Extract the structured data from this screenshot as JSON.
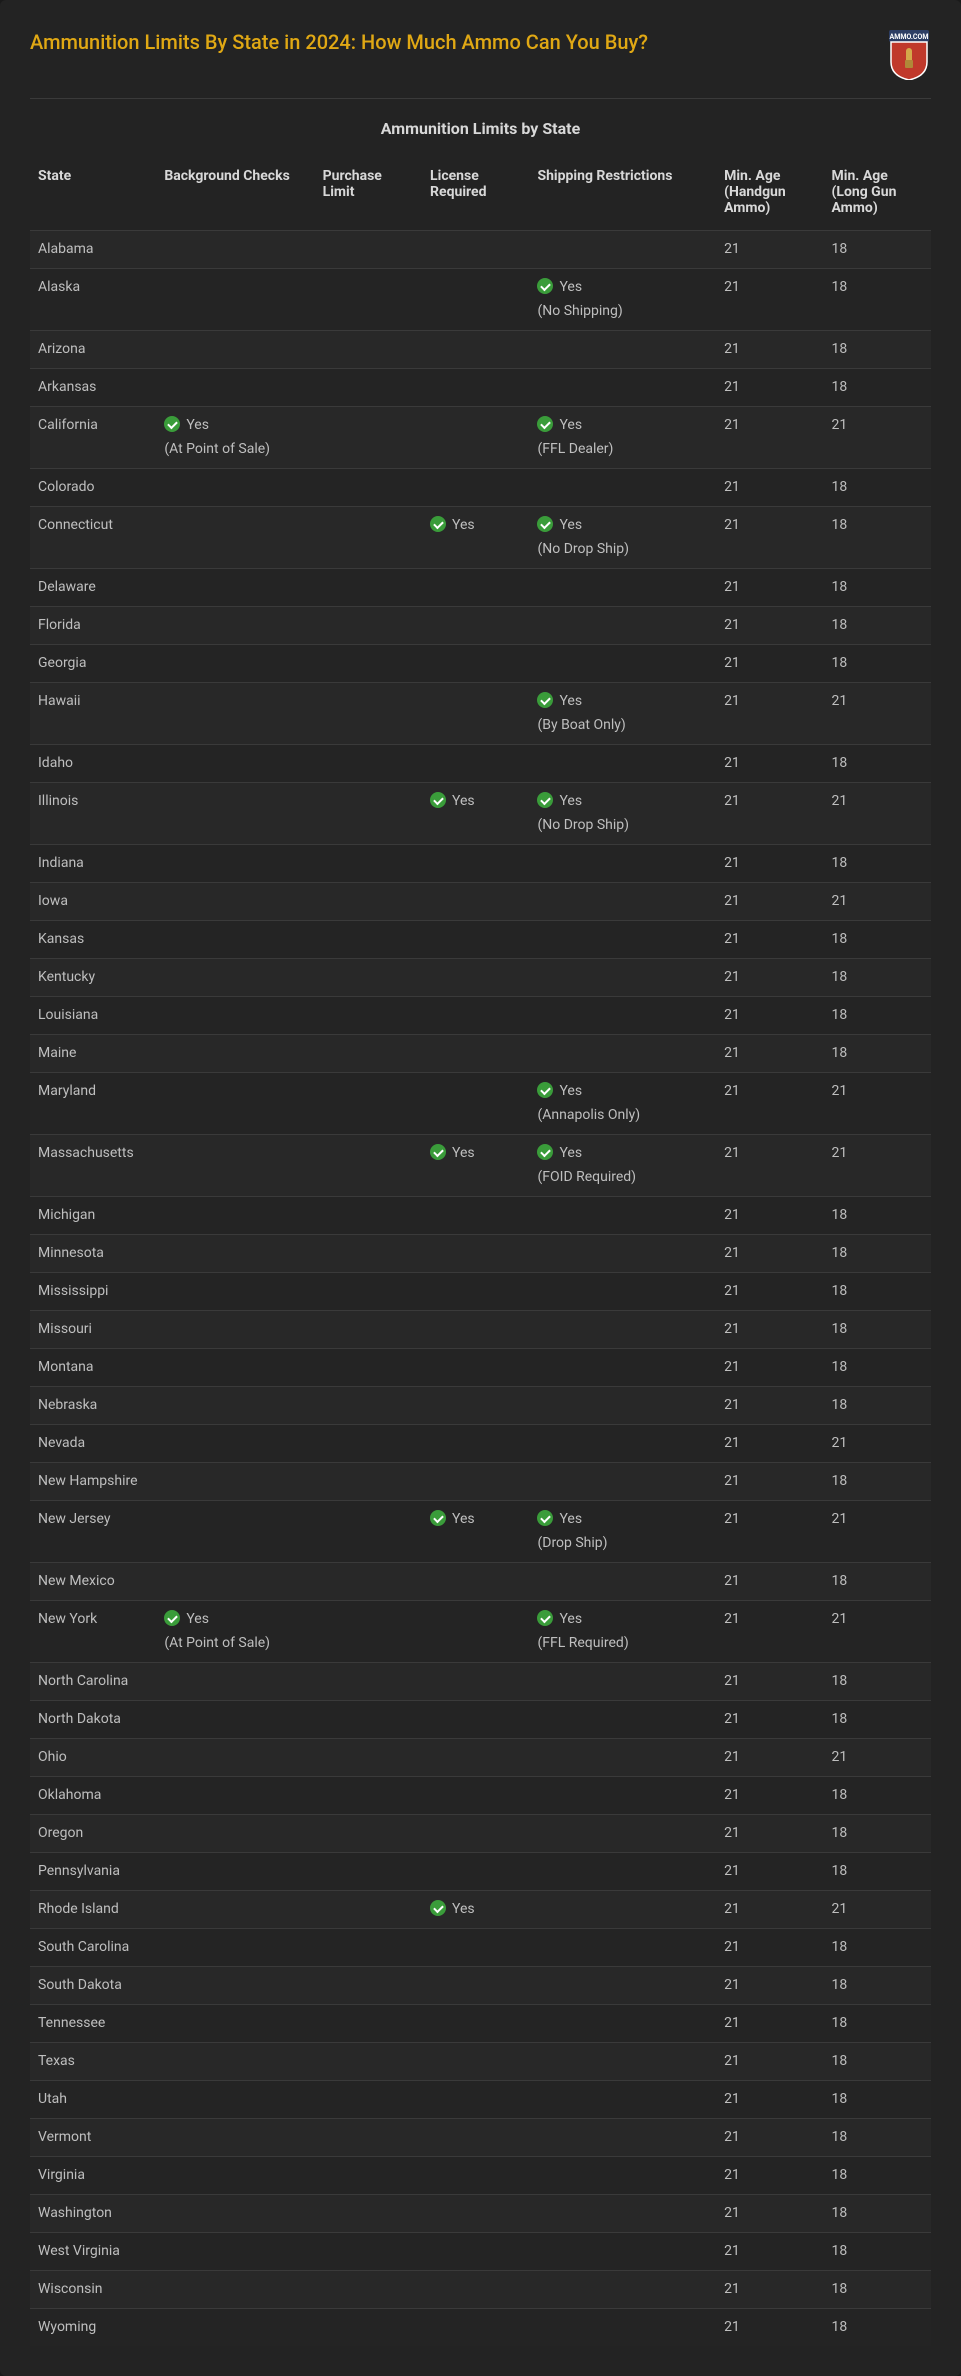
{
  "page": {
    "title": "Ammunition Limits By State in 2024: How Much Ammo Can You Buy?",
    "table_title": "Ammunition Limits by State",
    "logo_text": "AMMO.COM"
  },
  "yes_label": "Yes",
  "columns": [
    "State",
    "Background Checks",
    "Purchase Limit",
    "License Required",
    "Shipping Restrictions",
    "Min. Age (Handgun Ammo)",
    "Min. Age (Long Gun Ammo)"
  ],
  "rows": [
    {
      "state": "Alabama",
      "bg": null,
      "bg_note": null,
      "plimit": null,
      "license": false,
      "ship": false,
      "ship_note": null,
      "age_h": "21",
      "age_l": "18"
    },
    {
      "state": "Alaska",
      "bg": null,
      "bg_note": null,
      "plimit": null,
      "license": false,
      "ship": true,
      "ship_note": "(No Shipping)",
      "age_h": "21",
      "age_l": "18"
    },
    {
      "state": "Arizona",
      "bg": null,
      "bg_note": null,
      "plimit": null,
      "license": false,
      "ship": false,
      "ship_note": null,
      "age_h": "21",
      "age_l": "18"
    },
    {
      "state": "Arkansas",
      "bg": null,
      "bg_note": null,
      "plimit": null,
      "license": false,
      "ship": false,
      "ship_note": null,
      "age_h": "21",
      "age_l": "18"
    },
    {
      "state": "California",
      "bg": true,
      "bg_note": "(At Point of Sale)",
      "plimit": null,
      "license": false,
      "ship": true,
      "ship_note": "(FFL Dealer)",
      "age_h": "21",
      "age_l": "21"
    },
    {
      "state": "Colorado",
      "bg": null,
      "bg_note": null,
      "plimit": null,
      "license": false,
      "ship": false,
      "ship_note": null,
      "age_h": "21",
      "age_l": "18"
    },
    {
      "state": "Connecticut",
      "bg": null,
      "bg_note": null,
      "plimit": null,
      "license": true,
      "ship": true,
      "ship_note": "(No Drop Ship)",
      "age_h": "21",
      "age_l": "18"
    },
    {
      "state": "Delaware",
      "bg": null,
      "bg_note": null,
      "plimit": null,
      "license": false,
      "ship": false,
      "ship_note": null,
      "age_h": "21",
      "age_l": "18"
    },
    {
      "state": "Florida",
      "bg": null,
      "bg_note": null,
      "plimit": null,
      "license": false,
      "ship": false,
      "ship_note": null,
      "age_h": "21",
      "age_l": "18"
    },
    {
      "state": "Georgia",
      "bg": null,
      "bg_note": null,
      "plimit": null,
      "license": false,
      "ship": false,
      "ship_note": null,
      "age_h": "21",
      "age_l": "18"
    },
    {
      "state": "Hawaii",
      "bg": null,
      "bg_note": null,
      "plimit": null,
      "license": false,
      "ship": true,
      "ship_note": "(By Boat Only)",
      "age_h": "21",
      "age_l": "21"
    },
    {
      "state": "Idaho",
      "bg": null,
      "bg_note": null,
      "plimit": null,
      "license": false,
      "ship": false,
      "ship_note": null,
      "age_h": "21",
      "age_l": "18"
    },
    {
      "state": "Illinois",
      "bg": null,
      "bg_note": null,
      "plimit": null,
      "license": true,
      "ship": true,
      "ship_note": "(No Drop Ship)",
      "age_h": "21",
      "age_l": "21"
    },
    {
      "state": "Indiana",
      "bg": null,
      "bg_note": null,
      "plimit": null,
      "license": false,
      "ship": false,
      "ship_note": null,
      "age_h": "21",
      "age_l": "18"
    },
    {
      "state": "Iowa",
      "bg": null,
      "bg_note": null,
      "plimit": null,
      "license": false,
      "ship": false,
      "ship_note": null,
      "age_h": "21",
      "age_l": "21"
    },
    {
      "state": "Kansas",
      "bg": null,
      "bg_note": null,
      "plimit": null,
      "license": false,
      "ship": false,
      "ship_note": null,
      "age_h": "21",
      "age_l": "18"
    },
    {
      "state": "Kentucky",
      "bg": null,
      "bg_note": null,
      "plimit": null,
      "license": false,
      "ship": false,
      "ship_note": null,
      "age_h": "21",
      "age_l": "18"
    },
    {
      "state": "Louisiana",
      "bg": null,
      "bg_note": null,
      "plimit": null,
      "license": false,
      "ship": false,
      "ship_note": null,
      "age_h": "21",
      "age_l": "18"
    },
    {
      "state": "Maine",
      "bg": null,
      "bg_note": null,
      "plimit": null,
      "license": false,
      "ship": false,
      "ship_note": null,
      "age_h": "21",
      "age_l": "18"
    },
    {
      "state": "Maryland",
      "bg": null,
      "bg_note": null,
      "plimit": null,
      "license": false,
      "ship": true,
      "ship_note": "(Annapolis Only)",
      "age_h": "21",
      "age_l": "21"
    },
    {
      "state": "Massachusetts",
      "bg": null,
      "bg_note": null,
      "plimit": null,
      "license": true,
      "ship": true,
      "ship_note": "(FOID Required)",
      "age_h": "21",
      "age_l": "21"
    },
    {
      "state": "Michigan",
      "bg": null,
      "bg_note": null,
      "plimit": null,
      "license": false,
      "ship": false,
      "ship_note": null,
      "age_h": "21",
      "age_l": "18"
    },
    {
      "state": "Minnesota",
      "bg": null,
      "bg_note": null,
      "plimit": null,
      "license": false,
      "ship": false,
      "ship_note": null,
      "age_h": "21",
      "age_l": "18"
    },
    {
      "state": "Mississippi",
      "bg": null,
      "bg_note": null,
      "plimit": null,
      "license": false,
      "ship": false,
      "ship_note": null,
      "age_h": "21",
      "age_l": "18"
    },
    {
      "state": "Missouri",
      "bg": null,
      "bg_note": null,
      "plimit": null,
      "license": false,
      "ship": false,
      "ship_note": null,
      "age_h": "21",
      "age_l": "18"
    },
    {
      "state": "Montana",
      "bg": null,
      "bg_note": null,
      "plimit": null,
      "license": false,
      "ship": false,
      "ship_note": null,
      "age_h": "21",
      "age_l": "18"
    },
    {
      "state": "Nebraska",
      "bg": null,
      "bg_note": null,
      "plimit": null,
      "license": false,
      "ship": false,
      "ship_note": null,
      "age_h": "21",
      "age_l": "18"
    },
    {
      "state": "Nevada",
      "bg": null,
      "bg_note": null,
      "plimit": null,
      "license": false,
      "ship": false,
      "ship_note": null,
      "age_h": "21",
      "age_l": "21"
    },
    {
      "state": "New Hampshire",
      "bg": null,
      "bg_note": null,
      "plimit": null,
      "license": false,
      "ship": false,
      "ship_note": null,
      "age_h": "21",
      "age_l": "18"
    },
    {
      "state": "New Jersey",
      "bg": null,
      "bg_note": null,
      "plimit": null,
      "license": true,
      "ship": true,
      "ship_note": "(Drop Ship)",
      "age_h": "21",
      "age_l": "21"
    },
    {
      "state": "New Mexico",
      "bg": null,
      "bg_note": null,
      "plimit": null,
      "license": false,
      "ship": false,
      "ship_note": null,
      "age_h": "21",
      "age_l": "18"
    },
    {
      "state": "New York",
      "bg": true,
      "bg_note": "(At Point of Sale)",
      "plimit": null,
      "license": false,
      "ship": true,
      "ship_note": "(FFL Required)",
      "age_h": "21",
      "age_l": "21"
    },
    {
      "state": "North Carolina",
      "bg": null,
      "bg_note": null,
      "plimit": null,
      "license": false,
      "ship": false,
      "ship_note": null,
      "age_h": "21",
      "age_l": "18"
    },
    {
      "state": "North Dakota",
      "bg": null,
      "bg_note": null,
      "plimit": null,
      "license": false,
      "ship": false,
      "ship_note": null,
      "age_h": "21",
      "age_l": "18"
    },
    {
      "state": "Ohio",
      "bg": null,
      "bg_note": null,
      "plimit": null,
      "license": false,
      "ship": false,
      "ship_note": null,
      "age_h": "21",
      "age_l": "21"
    },
    {
      "state": "Oklahoma",
      "bg": null,
      "bg_note": null,
      "plimit": null,
      "license": false,
      "ship": false,
      "ship_note": null,
      "age_h": "21",
      "age_l": "18"
    },
    {
      "state": "Oregon",
      "bg": null,
      "bg_note": null,
      "plimit": null,
      "license": false,
      "ship": false,
      "ship_note": null,
      "age_h": "21",
      "age_l": "18"
    },
    {
      "state": "Pennsylvania",
      "bg": null,
      "bg_note": null,
      "plimit": null,
      "license": false,
      "ship": false,
      "ship_note": null,
      "age_h": "21",
      "age_l": "18"
    },
    {
      "state": "Rhode Island",
      "bg": null,
      "bg_note": null,
      "plimit": null,
      "license": true,
      "ship": false,
      "ship_note": null,
      "age_h": "21",
      "age_l": "21"
    },
    {
      "state": "South Carolina",
      "bg": null,
      "bg_note": null,
      "plimit": null,
      "license": false,
      "ship": false,
      "ship_note": null,
      "age_h": "21",
      "age_l": "18"
    },
    {
      "state": "South Dakota",
      "bg": null,
      "bg_note": null,
      "plimit": null,
      "license": false,
      "ship": false,
      "ship_note": null,
      "age_h": "21",
      "age_l": "18"
    },
    {
      "state": "Tennessee",
      "bg": null,
      "bg_note": null,
      "plimit": null,
      "license": false,
      "ship": false,
      "ship_note": null,
      "age_h": "21",
      "age_l": "18"
    },
    {
      "state": "Texas",
      "bg": null,
      "bg_note": null,
      "plimit": null,
      "license": false,
      "ship": false,
      "ship_note": null,
      "age_h": "21",
      "age_l": "18"
    },
    {
      "state": "Utah",
      "bg": null,
      "bg_note": null,
      "plimit": null,
      "license": false,
      "ship": false,
      "ship_note": null,
      "age_h": "21",
      "age_l": "18"
    },
    {
      "state": "Vermont",
      "bg": null,
      "bg_note": null,
      "plimit": null,
      "license": false,
      "ship": false,
      "ship_note": null,
      "age_h": "21",
      "age_l": "18"
    },
    {
      "state": "Virginia",
      "bg": null,
      "bg_note": null,
      "plimit": null,
      "license": false,
      "ship": false,
      "ship_note": null,
      "age_h": "21",
      "age_l": "18"
    },
    {
      "state": "Washington",
      "bg": null,
      "bg_note": null,
      "plimit": null,
      "license": false,
      "ship": false,
      "ship_note": null,
      "age_h": "21",
      "age_l": "18"
    },
    {
      "state": "West Virginia",
      "bg": null,
      "bg_note": null,
      "plimit": null,
      "license": false,
      "ship": false,
      "ship_note": null,
      "age_h": "21",
      "age_l": "18"
    },
    {
      "state": "Wisconsin",
      "bg": null,
      "bg_note": null,
      "plimit": null,
      "license": false,
      "ship": false,
      "ship_note": null,
      "age_h": "21",
      "age_l": "18"
    },
    {
      "state": "Wyoming",
      "bg": null,
      "bg_note": null,
      "plimit": null,
      "license": false,
      "ship": false,
      "ship_note": null,
      "age_h": "21",
      "age_l": "18"
    }
  ],
  "colors": {
    "page_bg": "#1a1a1a",
    "container_bg": "#232323",
    "title": "#e0a814",
    "text": "#c8c8c8",
    "row_odd": "#282828",
    "row_even": "#242424",
    "border": "#3a3a3a",
    "check_green": "#3a9c3a",
    "logo_red": "#c0392b",
    "logo_blue": "#2d3e64"
  }
}
